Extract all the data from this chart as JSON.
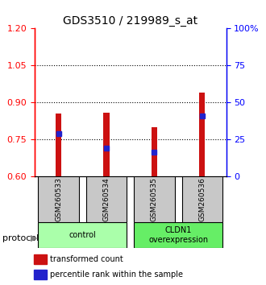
{
  "title": "GDS3510 / 219989_s_at",
  "samples": [
    "GSM260533",
    "GSM260534",
    "GSM260535",
    "GSM260536"
  ],
  "bar_bottoms": [
    0.6,
    0.6,
    0.6,
    0.6
  ],
  "bar_tops": [
    0.855,
    0.86,
    0.8,
    0.94
  ],
  "percentile_vals": [
    0.775,
    0.715,
    0.7,
    0.845
  ],
  "ylim": [
    0.6,
    1.2
  ],
  "yticks_left": [
    0.6,
    0.75,
    0.9,
    1.05,
    1.2
  ],
  "yticks_right": [
    0,
    25,
    50,
    75,
    100
  ],
  "bar_color": "#cc1111",
  "marker_color": "#2222cc",
  "groups": [
    {
      "label": "control",
      "start": 0,
      "end": 2,
      "color": "#aaffaa"
    },
    {
      "label": "CLDN1\noverexpression",
      "start": 2,
      "end": 4,
      "color": "#66ee66"
    }
  ],
  "protocol_label": "protocol",
  "legend_red_label": "transformed count",
  "legend_blue_label": "percentile rank within the sample",
  "title_fontsize": 10,
  "label_fontsize": 7,
  "bar_width": 0.12
}
